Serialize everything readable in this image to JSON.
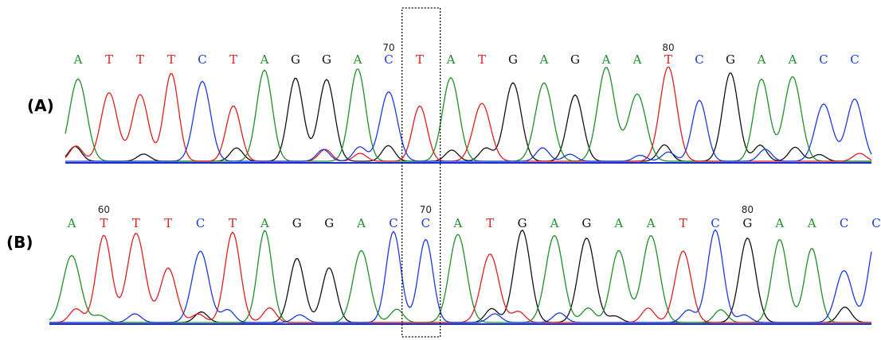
{
  "chart_data": [
    {
      "type": "chromatogram",
      "label": "(A)",
      "bases": [
        "A",
        "T",
        "T",
        "T",
        "C",
        "T",
        "A",
        "G",
        "G",
        "A",
        "C",
        "T",
        "A",
        "T",
        "G",
        "A",
        "G",
        "A",
        "A",
        "T",
        "C",
        "G",
        "A",
        "A",
        "C",
        "C"
      ],
      "positions": [
        {
          "index": 10,
          "label": "70"
        },
        {
          "index": 19,
          "label": "80"
        }
      ]
    },
    {
      "type": "chromatogram",
      "label": "(B)",
      "bases": [
        "A",
        "T",
        "T",
        "T",
        "C",
        "T",
        "A",
        "G",
        "G",
        "A",
        "C",
        "C",
        "A",
        "T",
        "G",
        "A",
        "G",
        "A",
        "A",
        "T",
        "C",
        "G",
        "A",
        "A",
        "C",
        "C"
      ],
      "positions": [
        {
          "index": 1,
          "label": "60"
        },
        {
          "index": 11,
          "label": "70"
        },
        {
          "index": 21,
          "label": "80"
        }
      ]
    }
  ],
  "highlight": {
    "base_index": 11
  },
  "colors": {
    "A": "#1f8f2a",
    "C": "#1a3ae0",
    "G": "#111111",
    "T": "#e01e1e",
    "baseline": "#1a2fd0",
    "box": "#000000"
  }
}
